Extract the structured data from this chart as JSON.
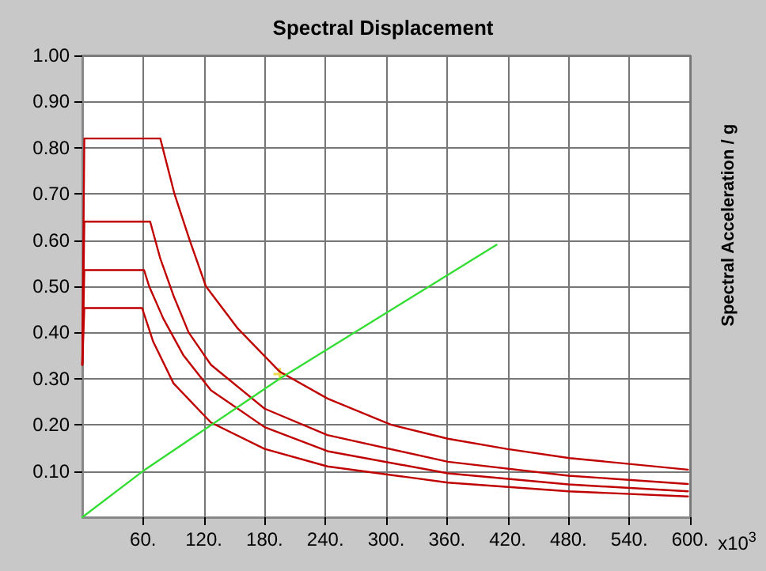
{
  "chart_data": {
    "type": "line",
    "title": "Spectral Displacement",
    "xlabel": "x10$^{3}$",
    "ylabel": "Spectral Acceleration / g",
    "xlim": [
      0,
      600
    ],
    "xticks": [
      {
        "value": 60,
        "label": "60."
      },
      {
        "value": 120,
        "label": "120."
      },
      {
        "value": 180,
        "label": "180."
      },
      {
        "value": 240,
        "label": "240."
      },
      {
        "value": 300,
        "label": "300."
      },
      {
        "value": 360,
        "label": "360."
      },
      {
        "value": 420,
        "label": "420."
      },
      {
        "value": 480,
        "label": "480."
      },
      {
        "value": 540,
        "label": "540."
      },
      {
        "value": 600,
        "label": "600."
      }
    ],
    "ylim": [
      0,
      1
    ],
    "yticks": [
      {
        "value": 0.1,
        "label": "0.10"
      },
      {
        "value": 0.2,
        "label": "0.20"
      },
      {
        "value": 0.3,
        "label": "0.30"
      },
      {
        "value": 0.4,
        "label": "0.40"
      },
      {
        "value": 0.5,
        "label": "0.50"
      },
      {
        "value": 0.6,
        "label": "0.60"
      },
      {
        "value": 0.7,
        "label": "0.70"
      },
      {
        "value": 0.8,
        "label": "0.80"
      },
      {
        "value": 0.9,
        "label": "0.90"
      },
      {
        "value": 1,
        "label": "1.00"
      }
    ],
    "grid": true,
    "marker": "none",
    "line_style": "solid",
    "series": [
      {
        "color": "#c00000",
        "x": [
          0,
          2,
          77,
          91,
          106,
          122,
          153,
          195,
          242,
          305,
          361,
          419,
          481,
          598
        ],
        "values": [
          0.33,
          0.82,
          0.82,
          0.7,
          0.6,
          0.5,
          0.41,
          0.315,
          0.257,
          0.2,
          0.17,
          0.148,
          0.128,
          0.103
        ]
      },
      {
        "color": "#c00000",
        "x": [
          0,
          2,
          67,
          77,
          90,
          105,
          127,
          180,
          242,
          361,
          480,
          598
        ],
        "values": [
          0.33,
          0.64,
          0.64,
          0.56,
          0.48,
          0.4,
          0.33,
          0.235,
          0.178,
          0.12,
          0.09,
          0.072
        ]
      },
      {
        "color": "#c00000",
        "x": [
          0,
          2,
          61,
          66,
          80,
          100,
          127,
          180,
          242,
          361,
          480,
          598
        ],
        "values": [
          0.33,
          0.535,
          0.535,
          0.5,
          0.43,
          0.35,
          0.275,
          0.195,
          0.143,
          0.095,
          0.071,
          0.056
        ]
      },
      {
        "color": "#c00000",
        "x": [
          0,
          2,
          59,
          70,
          90,
          127,
          180,
          242,
          361,
          480,
          598
        ],
        "values": [
          0.33,
          0.453,
          0.453,
          0.38,
          0.29,
          0.205,
          0.148,
          0.11,
          0.075,
          0.056,
          0.045
        ]
      },
      {
        "color": "#33dd33",
        "x": [
          0,
          60,
          195,
          409
        ],
        "values": [
          0,
          0.1,
          0.3,
          0.59
        ]
      },
      {
        "type": "scatter",
        "marker": "cross",
        "color": "#e8d020",
        "x": [
          195
        ],
        "values": [
          0.31
        ]
      }
    ]
  }
}
